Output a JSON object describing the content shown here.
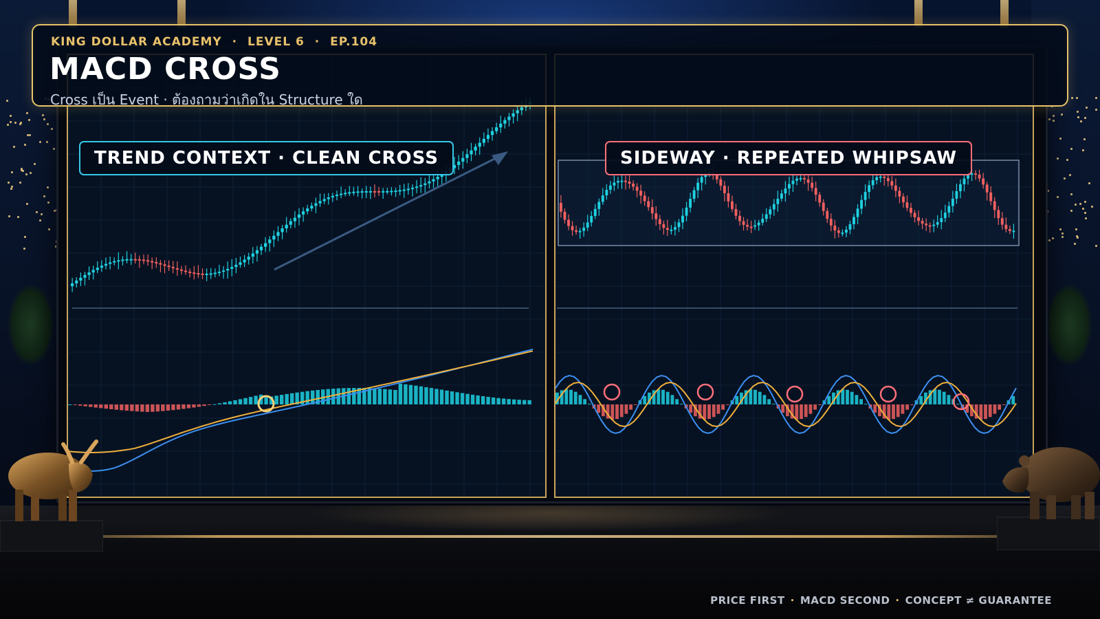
{
  "header": {
    "series": "KING DOLLAR ACADEMY",
    "level": "LEVEL 6",
    "episode": "EP.104",
    "separator": "·",
    "title": "MACD CROSS",
    "subtitle": "Cross เป็น Event · ต้องถามว่าเกิดใน Structure ใด"
  },
  "panels": {
    "trend": {
      "label": "TREND CONTEXT · CLEAN CROSS"
    },
    "sideway": {
      "label": "SIDEWAY · REPEATED WHIPSAW"
    }
  },
  "footer": {
    "items": [
      "PRICE FIRST",
      "MACD SECOND",
      "CONCEPT ≠ GUARANTEE"
    ],
    "separator": "·"
  },
  "colors": {
    "gold": "#e6c36a",
    "bull_candle": "#1fd0e0",
    "bear_candle": "#f0605f",
    "macd_line": "#3d8ff0",
    "signal_line": "#f0b03c",
    "trend_accent": "#38c9e8",
    "whipsaw_accent": "#ff6f7a"
  },
  "chart_data": [
    {
      "type": "candlestick+macd",
      "context": "trend",
      "price_pattern": "uptrend",
      "macd_crosses": 1,
      "cross_marker": "gold-circle",
      "trend_arrow": true
    },
    {
      "type": "candlestick+macd",
      "context": "sideway",
      "price_pattern": "range-bound",
      "macd_crosses": 5,
      "cross_marker": "red-circle",
      "range_box": true
    }
  ],
  "icons": {
    "bull": "bull-statue-icon",
    "bear": "bear-statue-icon",
    "trend_arrow": "trend-arrow-icon"
  }
}
